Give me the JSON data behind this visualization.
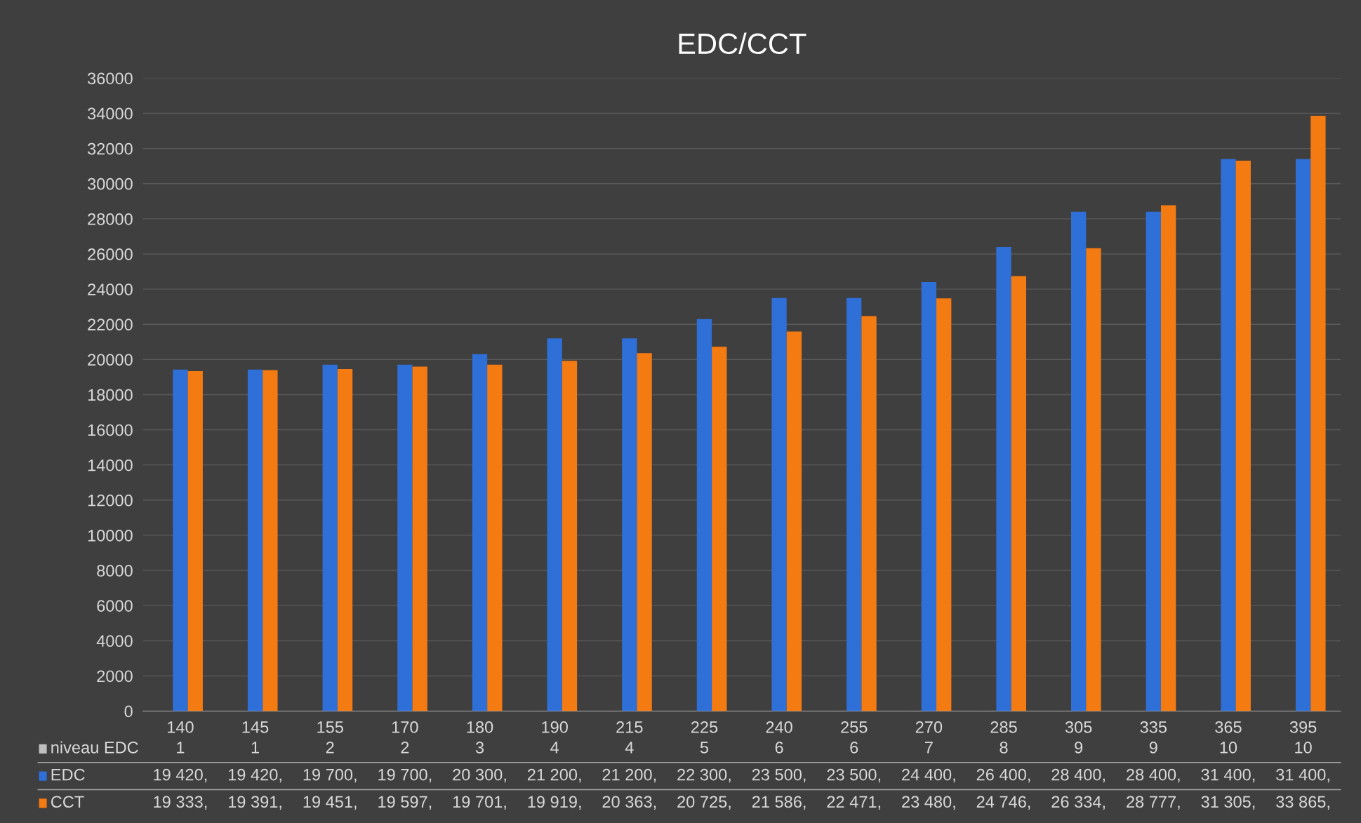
{
  "chart_data": {
    "type": "bar",
    "title": "EDC/CCT",
    "categories": [
      "140",
      "145",
      "155",
      "170",
      "180",
      "190",
      "215",
      "225",
      "240",
      "255",
      "270",
      "285",
      "305",
      "335",
      "365",
      "395"
    ],
    "series": [
      {
        "name": "niveau EDC",
        "color": "#bfbfbf",
        "values": [
          1,
          1,
          2,
          2,
          3,
          4,
          4,
          5,
          6,
          6,
          7,
          8,
          9,
          9,
          10,
          10
        ],
        "value_labels": [
          "1",
          "1",
          "2",
          "2",
          "3",
          "4",
          "4",
          "5",
          "6",
          "6",
          "7",
          "8",
          "9",
          "9",
          "10",
          "10"
        ]
      },
      {
        "name": "EDC",
        "color": "#2e6fd8",
        "values": [
          19420,
          19420,
          19700,
          19700,
          20300,
          21200,
          21200,
          22300,
          23500,
          23500,
          24400,
          26400,
          28400,
          28400,
          31400,
          31400
        ],
        "value_labels": [
          "19 420,",
          "19 420,",
          "19 700,",
          "19 700,",
          "20 300,",
          "21 200,",
          "21 200,",
          "22 300,",
          "23 500,",
          "23 500,",
          "24 400,",
          "26 400,",
          "28 400,",
          "28 400,",
          "31 400,",
          "31 400,"
        ]
      },
      {
        "name": "CCT",
        "color": "#f47a12",
        "values": [
          19333,
          19391,
          19451,
          19597,
          19701,
          19919,
          20363,
          20725,
          21586,
          22471,
          23480,
          24746,
          26334,
          28777,
          31305,
          33865
        ],
        "value_labels": [
          "19 333,",
          "19 391,",
          "19 451,",
          "19 597,",
          "19 701,",
          "19 919,",
          "20 363,",
          "20 725,",
          "21 586,",
          "22 471,",
          "23 480,",
          "24 746,",
          "26 334,",
          "28 777,",
          "31 305,",
          "33 865,"
        ]
      }
    ],
    "ylim": [
      0,
      36000
    ],
    "yticks": [
      0,
      2000,
      4000,
      6000,
      8000,
      10000,
      12000,
      14000,
      16000,
      18000,
      20000,
      22000,
      24000,
      26000,
      28000,
      30000,
      32000,
      34000,
      36000
    ],
    "grid": "y",
    "legend": "bottom"
  }
}
